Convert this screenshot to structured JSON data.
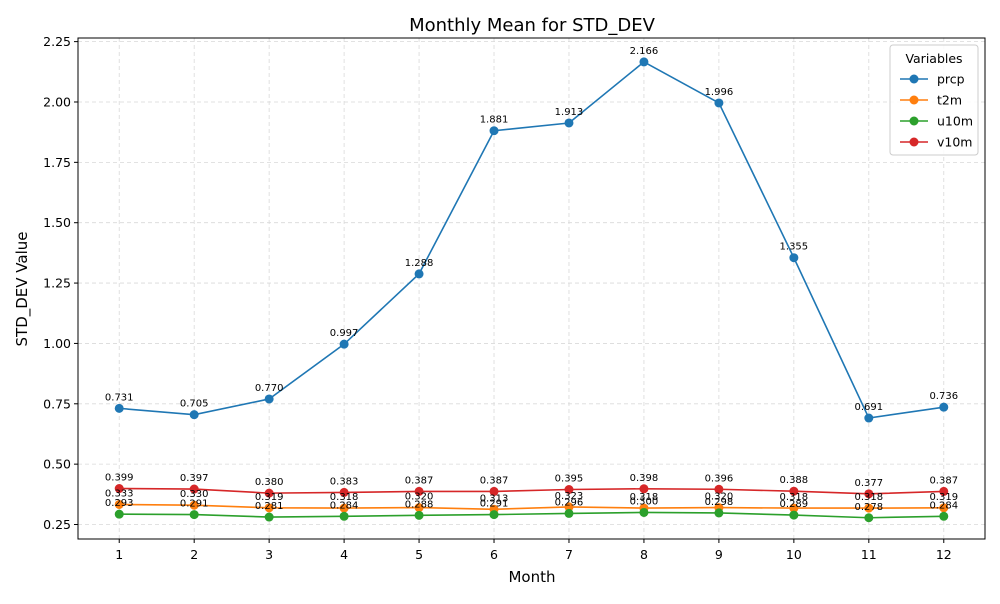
{
  "chart_data": {
    "type": "line",
    "title": "Monthly Mean for STD_DEV",
    "xlabel": "Month",
    "ylabel": "STD_DEV Value",
    "x": [
      1,
      2,
      3,
      4,
      5,
      6,
      7,
      8,
      9,
      10,
      11,
      12
    ],
    "ylim": [
      0.19,
      2.265
    ],
    "yticks": [
      0.25,
      0.5,
      0.75,
      1.0,
      1.25,
      1.5,
      1.75,
      2.0,
      2.25
    ],
    "ytick_labels": [
      "0.25",
      "0.50",
      "0.75",
      "1.00",
      "1.25",
      "1.50",
      "1.75",
      "2.00",
      "2.25"
    ],
    "grid": true,
    "legend": {
      "title": "Variables",
      "placement": "top-right"
    },
    "series": [
      {
        "name": "prcp",
        "color": "#1f77b4",
        "values": [
          0.731,
          0.705,
          0.77,
          0.997,
          1.288,
          1.881,
          1.913,
          2.166,
          1.996,
          1.355,
          0.691,
          0.736
        ],
        "labels": [
          "0.731",
          "0.705",
          "0.770",
          "0.997",
          "1.288",
          "1.881",
          "1.913",
          "2.166",
          "1.996",
          "1.355",
          "0.691",
          "0.736"
        ]
      },
      {
        "name": "t2m",
        "color": "#ff7f0e",
        "values": [
          0.333,
          0.33,
          0.319,
          0.318,
          0.32,
          0.313,
          0.323,
          0.318,
          0.32,
          0.318,
          0.318,
          0.319
        ],
        "labels": [
          "0.333",
          "0.330",
          "0.319",
          "0.318",
          "0.320",
          "0.313",
          "0.323",
          "0.318",
          "0.320",
          "0.318",
          "0.318",
          "0.319"
        ]
      },
      {
        "name": "u10m",
        "color": "#2ca02c",
        "values": [
          0.293,
          0.291,
          0.281,
          0.284,
          0.288,
          0.291,
          0.296,
          0.3,
          0.298,
          0.289,
          0.278,
          0.284
        ],
        "labels": [
          "0.293",
          "0.291",
          "0.281",
          "0.284",
          "0.288",
          "0.291",
          "0.296",
          "0.300",
          "0.298",
          "0.289",
          "0.278",
          "0.284"
        ]
      },
      {
        "name": "v10m",
        "color": "#d62728",
        "values": [
          0.399,
          0.397,
          0.38,
          0.383,
          0.387,
          0.387,
          0.395,
          0.398,
          0.396,
          0.388,
          0.377,
          0.387
        ],
        "labels": [
          "0.399",
          "0.397",
          "0.380",
          "0.383",
          "0.387",
          "0.387",
          "0.395",
          "0.398",
          "0.396",
          "0.388",
          "0.377",
          "0.387"
        ]
      }
    ]
  }
}
